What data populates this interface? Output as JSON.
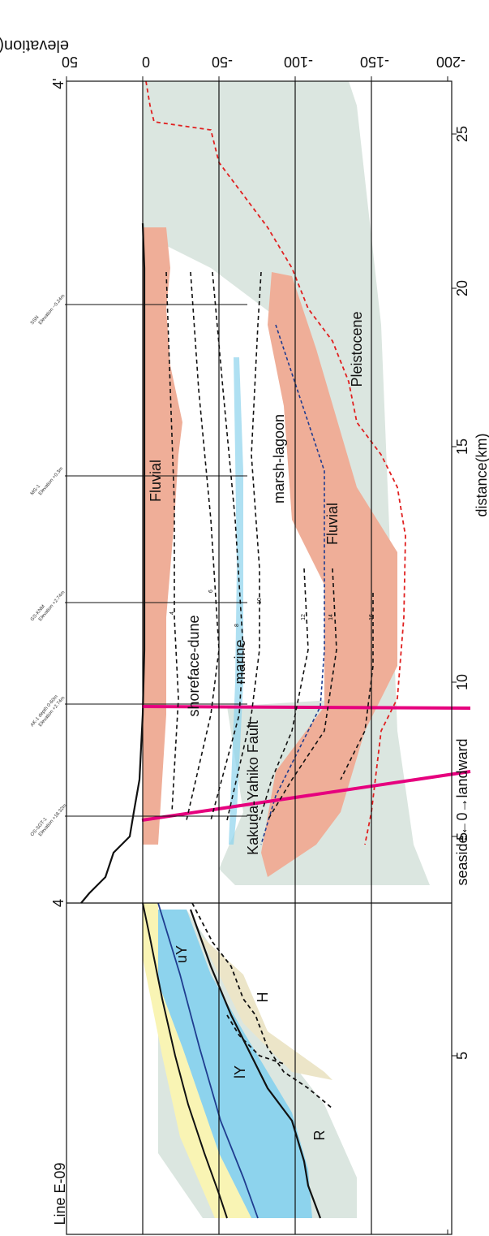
{
  "figure": {
    "line_label": "Line E-09",
    "fault_label": "Kakuda-Yahiko Fault",
    "depth_axis": {
      "label": "elevation(m)",
      "ticks": [
        "50",
        "0",
        "-50",
        "-100",
        "-150",
        "-200"
      ]
    },
    "distance_axis": {
      "label": "distance(km)",
      "ticks": [
        "5",
        "10",
        "15",
        "20",
        "25"
      ]
    },
    "seaside_axis": {
      "label": "seaside←0→landward",
      "ticks": [
        "5"
      ]
    },
    "marker_4": "4",
    "marker_4p": "4'",
    "units_left": [
      "uY",
      "lY",
      "H",
      "R"
    ],
    "units_right": {
      "fluvial_upper": "Fluvial",
      "shoreface": "shoreface-dune",
      "marine": "marine",
      "marsh": "marsh-lagoon",
      "fluvial_lower": "Fluvial",
      "pleistocene": "Pleistocene"
    },
    "contour_labels": [
      "4",
      "6",
      "8",
      "10",
      "12",
      "14",
      "16"
    ],
    "boreholes": [
      {
        "name": "OS-SGT-1",
        "elev": "Elevation +18.32m"
      },
      {
        "name": "AK-1 depth 0-60m",
        "elev": "Elevation +2.74m"
      },
      {
        "name": "GS-KNM",
        "elev": "Elevation +2.74m"
      },
      {
        "name": "MG-1",
        "elev": "Elevation +0.3m"
      },
      {
        "name": "SSN",
        "elev": "Elevation −0.24m"
      }
    ],
    "colors": {
      "pleistocene": "#dbe6e0",
      "fluvial": "#efae98",
      "upper_yellow": "#f9f4b4",
      "lower_blue": "#8dd3ed",
      "h_unit": "#ece5c8",
      "fault": "#e6007e",
      "red_dash": "#e02020",
      "blue_dash": "#1f3c8f"
    }
  }
}
